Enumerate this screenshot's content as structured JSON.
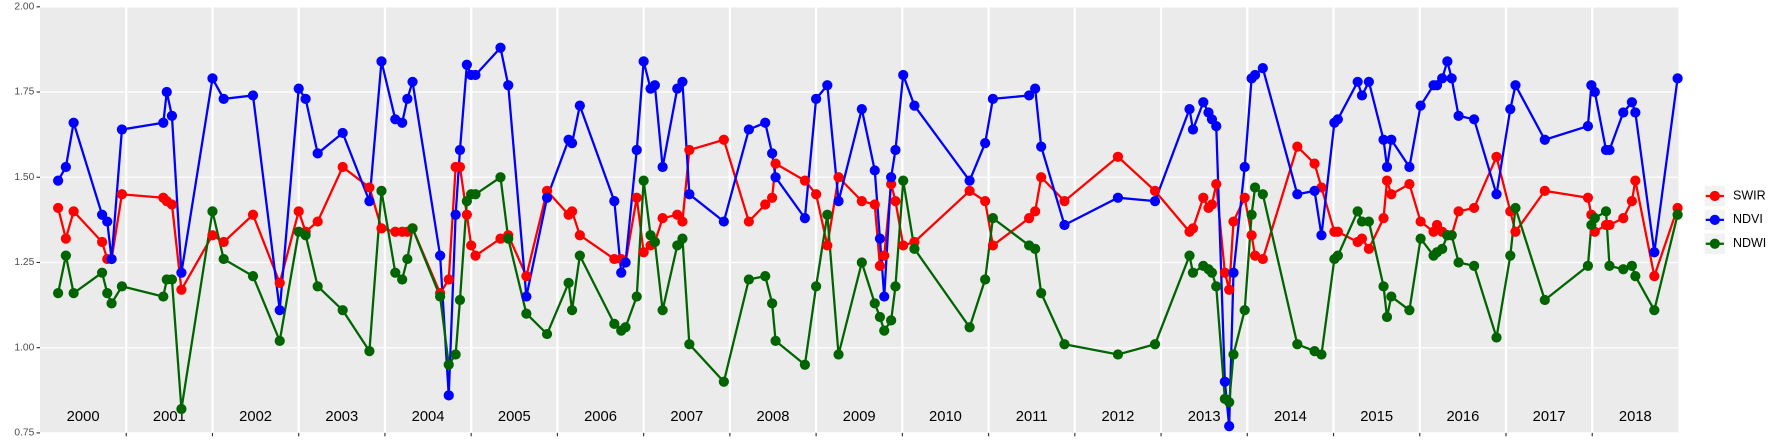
{
  "chart_data": {
    "type": "line",
    "x": [
      2000.21,
      2000.3,
      2000.39,
      2000.72,
      2000.78,
      2000.83,
      2000.95,
      2001.43,
      2001.47,
      2001.53,
      2001.64,
      2002.0,
      2002.13,
      2002.47,
      2002.78,
      2003.0,
      2003.08,
      2003.22,
      2003.51,
      2003.82,
      2003.96,
      2004.12,
      2004.2,
      2004.26,
      2004.32,
      2004.64,
      2004.74,
      2004.82,
      2004.87,
      2004.95,
      2005.0,
      2005.05,
      2005.34,
      2005.43,
      2005.64,
      2005.88,
      2006.13,
      2006.17,
      2006.26,
      2006.66,
      2006.74,
      2006.79,
      2006.92,
      2007.0,
      2007.08,
      2007.13,
      2007.22,
      2007.39,
      2007.45,
      2007.53,
      2007.93,
      2008.22,
      2008.41,
      2008.49,
      2008.53,
      2008.87,
      2009.0,
      2009.13,
      2009.26,
      2009.53,
      2009.68,
      2009.74,
      2009.79,
      2009.87,
      2009.92,
      2010.01,
      2010.14,
      2010.78,
      2010.96,
      2011.05,
      2011.47,
      2011.54,
      2011.61,
      2011.88,
      2012.5,
      2012.93,
      2013.33,
      2013.37,
      2013.49,
      2013.55,
      2013.59,
      2013.64,
      2013.74,
      2013.79,
      2013.84,
      2013.97,
      2014.05,
      2014.09,
      2014.18,
      2014.58,
      2014.78,
      2014.86,
      2015.01,
      2015.05,
      2015.28,
      2015.33,
      2015.41,
      2015.58,
      2015.62,
      2015.67,
      2015.88,
      2016.01,
      2016.16,
      2016.2,
      2016.26,
      2016.32,
      2016.37,
      2016.45,
      2016.63,
      2016.89,
      2017.05,
      2017.11,
      2017.45,
      2017.95,
      2017.99,
      2018.03,
      2018.16,
      2018.2,
      2018.36,
      2018.46,
      2018.5,
      2018.72,
      2018.99
    ],
    "series": [
      {
        "name": "SWIR",
        "color": "#ff0000",
        "values": [
          1.41,
          1.32,
          1.4,
          1.31,
          1.26,
          1.26,
          1.45,
          1.44,
          1.43,
          1.42,
          1.17,
          1.33,
          1.31,
          1.39,
          1.19,
          1.4,
          1.34,
          1.37,
          1.53,
          1.47,
          1.35,
          1.34,
          1.34,
          1.34,
          1.35,
          1.16,
          1.2,
          1.53,
          1.53,
          1.39,
          1.3,
          1.27,
          1.32,
          1.33,
          1.21,
          1.46,
          1.39,
          1.4,
          1.33,
          1.26,
          1.26,
          1.25,
          1.44,
          1.28,
          1.3,
          1.31,
          1.38,
          1.39,
          1.37,
          1.58,
          1.61,
          1.37,
          1.42,
          1.44,
          1.54,
          1.49,
          1.45,
          1.3,
          1.5,
          1.43,
          1.42,
          1.24,
          1.27,
          1.48,
          1.43,
          1.3,
          1.31,
          1.46,
          1.43,
          1.3,
          1.38,
          1.4,
          1.5,
          1.43,
          1.56,
          1.46,
          1.34,
          1.35,
          1.44,
          1.41,
          1.42,
          1.48,
          1.22,
          1.17,
          1.37,
          1.44,
          1.33,
          1.27,
          1.26,
          1.59,
          1.54,
          1.47,
          1.34,
          1.34,
          1.31,
          1.32,
          1.29,
          1.38,
          1.49,
          1.45,
          1.48,
          1.37,
          1.34,
          1.36,
          1.34,
          1.33,
          1.33,
          1.4,
          1.41,
          1.56,
          1.4,
          1.34,
          1.46,
          1.44,
          1.39,
          1.34,
          1.36,
          1.36,
          1.38,
          1.43,
          1.49,
          1.21,
          1.41
        ]
      },
      {
        "name": "NDVI",
        "color": "#0000ff",
        "values": [
          1.49,
          1.53,
          1.66,
          1.39,
          1.37,
          1.26,
          1.64,
          1.66,
          1.75,
          1.68,
          1.22,
          1.79,
          1.73,
          1.74,
          1.11,
          1.76,
          1.73,
          1.57,
          1.63,
          1.43,
          1.84,
          1.67,
          1.66,
          1.73,
          1.78,
          1.27,
          0.86,
          1.39,
          1.58,
          1.83,
          1.8,
          1.8,
          1.88,
          1.77,
          1.15,
          1.44,
          1.61,
          1.6,
          1.71,
          1.43,
          1.22,
          1.25,
          1.58,
          1.84,
          1.76,
          1.77,
          1.53,
          1.76,
          1.78,
          1.45,
          1.37,
          1.64,
          1.66,
          1.57,
          1.5,
          1.38,
          1.73,
          1.77,
          1.43,
          1.7,
          1.52,
          1.32,
          1.15,
          1.5,
          1.58,
          1.8,
          1.71,
          1.49,
          1.6,
          1.73,
          1.74,
          1.76,
          1.59,
          1.36,
          1.44,
          1.43,
          1.7,
          1.64,
          1.72,
          1.69,
          1.67,
          1.65,
          0.9,
          0.77,
          1.22,
          1.53,
          1.79,
          1.8,
          1.82,
          1.45,
          1.46,
          1.33,
          1.66,
          1.67,
          1.78,
          1.74,
          1.78,
          1.61,
          1.53,
          1.61,
          1.53,
          1.71,
          1.77,
          1.77,
          1.79,
          1.84,
          1.79,
          1.68,
          1.67,
          1.45,
          1.7,
          1.77,
          1.61,
          1.65,
          1.77,
          1.75,
          1.58,
          1.58,
          1.69,
          1.72,
          1.69,
          1.28,
          1.79
        ]
      },
      {
        "name": "NDWI",
        "color": "#006400",
        "values": [
          1.16,
          1.27,
          1.16,
          1.22,
          1.16,
          1.13,
          1.18,
          1.15,
          1.2,
          1.2,
          0.82,
          1.4,
          1.26,
          1.21,
          1.02,
          1.34,
          1.33,
          1.18,
          1.11,
          0.99,
          1.46,
          1.22,
          1.2,
          1.26,
          1.35,
          1.15,
          0.95,
          0.98,
          1.14,
          1.43,
          1.45,
          1.45,
          1.5,
          1.32,
          1.1,
          1.04,
          1.19,
          1.11,
          1.27,
          1.07,
          1.05,
          1.06,
          1.15,
          1.49,
          1.33,
          1.31,
          1.11,
          1.3,
          1.32,
          1.01,
          0.9,
          1.2,
          1.21,
          1.13,
          1.02,
          0.95,
          1.18,
          1.39,
          0.98,
          1.25,
          1.13,
          1.09,
          1.05,
          1.08,
          1.18,
          1.49,
          1.29,
          1.06,
          1.2,
          1.38,
          1.3,
          1.29,
          1.16,
          1.01,
          0.98,
          1.01,
          1.27,
          1.22,
          1.24,
          1.23,
          1.22,
          1.18,
          0.85,
          0.84,
          0.98,
          1.11,
          1.39,
          1.47,
          1.45,
          1.01,
          0.99,
          0.98,
          1.26,
          1.27,
          1.4,
          1.37,
          1.37,
          1.18,
          1.09,
          1.15,
          1.11,
          1.32,
          1.27,
          1.28,
          1.29,
          1.33,
          1.33,
          1.25,
          1.24,
          1.03,
          1.27,
          1.41,
          1.14,
          1.24,
          1.36,
          1.38,
          1.4,
          1.24,
          1.23,
          1.24,
          1.21,
          1.11,
          1.39
        ]
      }
    ],
    "xlim": [
      2000,
      2019
    ],
    "xticks": [
      {
        "value": 2000.5,
        "label": "2000"
      },
      {
        "value": 2001.5,
        "label": "2001"
      },
      {
        "value": 2002.5,
        "label": "2002"
      },
      {
        "value": 2003.5,
        "label": "2003"
      },
      {
        "value": 2004.5,
        "label": "2004"
      },
      {
        "value": 2005.5,
        "label": "2005"
      },
      {
        "value": 2006.5,
        "label": "2006"
      },
      {
        "value": 2007.5,
        "label": "2007"
      },
      {
        "value": 2008.5,
        "label": "2008"
      },
      {
        "value": 2009.5,
        "label": "2009"
      },
      {
        "value": 2010.5,
        "label": "2010"
      },
      {
        "value": 2011.5,
        "label": "2011"
      },
      {
        "value": 2012.5,
        "label": "2012"
      },
      {
        "value": 2013.5,
        "label": "2013"
      },
      {
        "value": 2014.5,
        "label": "2014"
      },
      {
        "value": 2015.5,
        "label": "2015"
      },
      {
        "value": 2016.5,
        "label": "2016"
      },
      {
        "value": 2017.5,
        "label": "2017"
      },
      {
        "value": 2018.5,
        "label": "2018"
      }
    ],
    "xgrid_lines": [
      2001,
      2002,
      2003,
      2004,
      2005,
      2006,
      2007,
      2008,
      2009,
      2010,
      2011,
      2012,
      2013,
      2014,
      2015,
      2016,
      2017,
      2018
    ],
    "ylim": [
      0.75,
      2.0
    ],
    "yticks": [
      {
        "value": 0.75,
        "label": "0.75"
      },
      {
        "value": 1.0,
        "label": "1.00"
      },
      {
        "value": 1.25,
        "label": "1.25"
      },
      {
        "value": 1.5,
        "label": "1.50"
      },
      {
        "value": 1.75,
        "label": "1.75"
      },
      {
        "value": 2.0,
        "label": "2.00"
      }
    ],
    "grid": true,
    "legend": "right"
  }
}
